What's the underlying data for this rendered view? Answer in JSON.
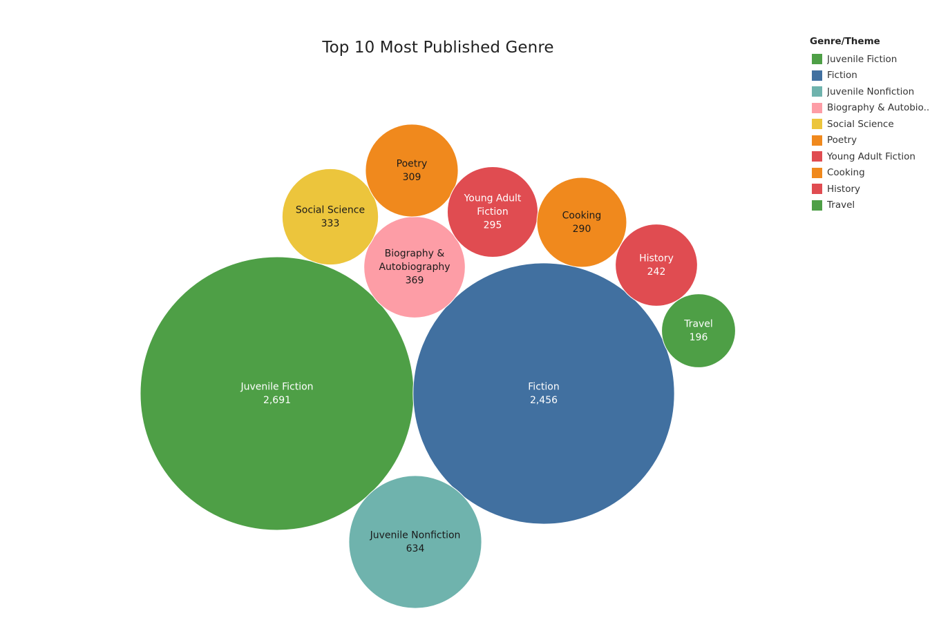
{
  "chart_data": {
    "type": "bubble",
    "title": "Top 10 Most Published Genre",
    "legend_title": "Genre/Theme",
    "legend_position": "top-right",
    "series": [
      {
        "name": "Juvenile Fiction",
        "legend_label": "Juvenile Fiction",
        "label_lines": [
          "Juvenile Fiction"
        ],
        "value": 2691,
        "value_label": "2,691",
        "color": "#4e9f46",
        "text_color": "#ffffff"
      },
      {
        "name": "Fiction",
        "legend_label": "Fiction",
        "label_lines": [
          "Fiction"
        ],
        "value": 2456,
        "value_label": "2,456",
        "color": "#4170a0",
        "text_color": "#ffffff"
      },
      {
        "name": "Juvenile Nonfiction",
        "legend_label": "Juvenile Nonfiction",
        "label_lines": [
          "Juvenile Nonfiction"
        ],
        "value": 634,
        "value_label": "634",
        "color": "#6fb3ad",
        "text_color": "#1a1a1a"
      },
      {
        "name": "Biography & Autobiography",
        "legend_label": "Biography & Autobio..",
        "label_lines": [
          "Biography &",
          "Autobiography"
        ],
        "value": 369,
        "value_label": "369",
        "color": "#fd9da6",
        "text_color": "#1a1a1a"
      },
      {
        "name": "Social Science",
        "legend_label": "Social Science",
        "label_lines": [
          "Social Science"
        ],
        "value": 333,
        "value_label": "333",
        "color": "#ecc53c",
        "text_color": "#1a1a1a"
      },
      {
        "name": "Poetry",
        "legend_label": "Poetry",
        "label_lines": [
          "Poetry"
        ],
        "value": 309,
        "value_label": "309",
        "color": "#f0891d",
        "text_color": "#1a1a1a"
      },
      {
        "name": "Young Adult Fiction",
        "legend_label": "Young Adult Fiction",
        "label_lines": [
          "Young Adult",
          "Fiction"
        ],
        "value": 295,
        "value_label": "295",
        "color": "#e04c51",
        "text_color": "#ffffff"
      },
      {
        "name": "Cooking",
        "legend_label": "Cooking",
        "label_lines": [
          "Cooking"
        ],
        "value": 290,
        "value_label": "290",
        "color": "#f0891d",
        "text_color": "#1a1a1a"
      },
      {
        "name": "History",
        "legend_label": "History",
        "label_lines": [
          "History"
        ],
        "value": 242,
        "value_label": "242",
        "color": "#e04c51",
        "text_color": "#ffffff"
      },
      {
        "name": "Travel",
        "legend_label": "Travel",
        "label_lines": [
          "Travel"
        ],
        "value": 196,
        "value_label": "196",
        "color": "#4e9f46",
        "text_color": "#ffffff"
      }
    ]
  }
}
